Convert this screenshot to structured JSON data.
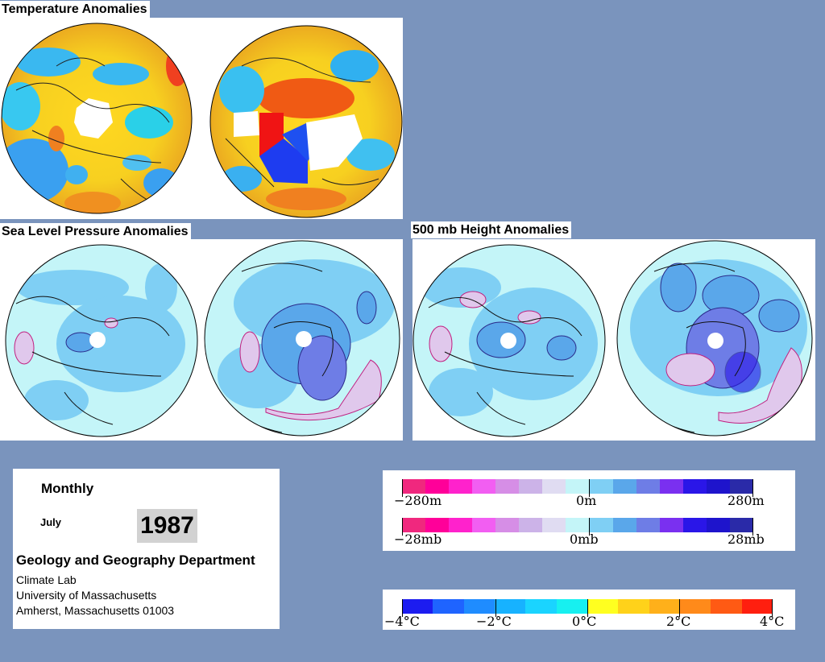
{
  "titles": {
    "temperature": "Temperature Anomalies",
    "slp": "Sea Level Pressure Anomalies",
    "height500": "500 mb Height Anomalies"
  },
  "info": {
    "period": "Monthly",
    "month": "July",
    "year": "1987",
    "department": "Geology and Geography Department",
    "lab": "Climate Lab",
    "university": "University of Massachusetts",
    "address": "Amherst, Massachusetts 01003"
  },
  "legends": {
    "height": {
      "min": "−280m",
      "mid": "0m",
      "max": "280m"
    },
    "pressure": {
      "min": "−28mb",
      "mid": "0mb",
      "max": "28mb"
    },
    "temperature": {
      "t1": "−4°C",
      "t2": "−2°C",
      "t3": "0°C",
      "t4": "2°C",
      "t5": "4°C"
    }
  },
  "colors": {
    "background": "#7a94bd",
    "pressure_scale": [
      "#f0287e",
      "#ff0099",
      "#ff22cc",
      "#f25ef2",
      "#d68ee6",
      "#ccb3e8",
      "#e0dcf2",
      "#c4f5f8",
      "#7fcff4",
      "#5aa7ea",
      "#6e7de6",
      "#7a30f0",
      "#2a16e8",
      "#1e14cc",
      "#2a2aa8"
    ],
    "temperature_scale": [
      "#1c1cf0",
      "#1f64ff",
      "#1f8cff",
      "#17b2ff",
      "#1ad4ff",
      "#17f0f0",
      "#ffff20",
      "#ffd21a",
      "#ffb01a",
      "#ff8a1a",
      "#ff5a14",
      "#ff1f0f"
    ]
  }
}
